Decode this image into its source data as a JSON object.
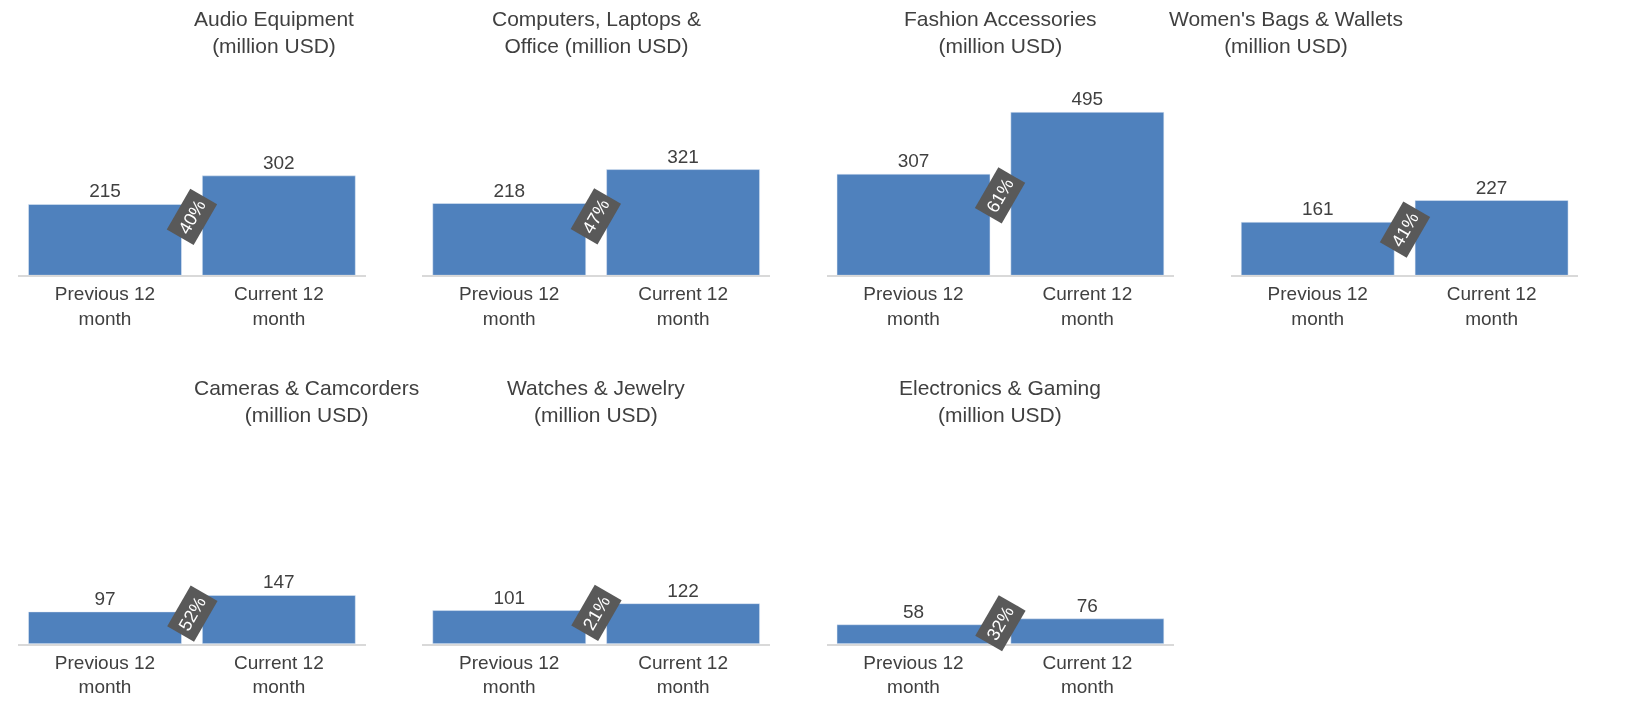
{
  "chart_data": [
    {
      "type": "bar",
      "title": "Audio Equipment (million USD)",
      "categories": [
        "Previous 12 month",
        "Current 12 month"
      ],
      "values": [
        215,
        302
      ],
      "color": "#4f81bd",
      "data_labels": true,
      "annotations": [
        "40%"
      ]
    },
    {
      "type": "bar",
      "title": "Computers, Laptops & Office (million USD)",
      "categories": [
        "Previous 12 month",
        "Current 12 month"
      ],
      "values": [
        218,
        321
      ],
      "color": "#4f81bd",
      "data_labels": true,
      "annotations": [
        "47%"
      ]
    },
    {
      "type": "bar",
      "title": "Fashion Accessories (million USD)",
      "categories": [
        "Previous 12 month",
        "Current 12 month"
      ],
      "values": [
        307,
        495
      ],
      "color": "#4f81bd",
      "data_labels": true,
      "annotations": [
        "61%"
      ]
    },
    {
      "type": "bar",
      "title": "Women's Bags & Wallets (million USD)",
      "categories": [
        "Previous 12 month",
        "Current 12 month"
      ],
      "values": [
        161,
        227
      ],
      "color": "#4f81bd",
      "data_labels": true,
      "annotations": [
        "41%"
      ]
    },
    {
      "type": "bar",
      "title": "Cameras & Camcorders (million USD)",
      "categories": [
        "Previous 12 month",
        "Current 12 month"
      ],
      "values": [
        97,
        147
      ],
      "color": "#4f81bd",
      "data_labels": true,
      "annotations": [
        "52%"
      ]
    },
    {
      "type": "bar",
      "title": "Watches & Jewelry (million USD)",
      "categories": [
        "Previous 12 month",
        "Current 12 month"
      ],
      "values": [
        101,
        122
      ],
      "color": "#4f81bd",
      "data_labels": true,
      "annotations": [
        "21%"
      ]
    },
    {
      "type": "bar",
      "title": "Electronics & Gaming (million USD)",
      "categories": [
        "Previous 12 month",
        "Current 12 month"
      ],
      "values": [
        58,
        76
      ],
      "color": "#4f81bd",
      "data_labels": true,
      "annotations": [
        "32%"
      ]
    }
  ]
}
